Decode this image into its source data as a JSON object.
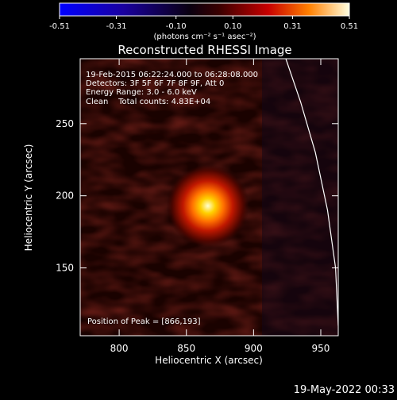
{
  "colorbar": {
    "tick_labels": [
      "-0.51",
      "-0.31",
      "-0.10",
      "0.10",
      "0.31",
      "0.51"
    ],
    "tick_values": [
      -0.51,
      -0.31,
      -0.1,
      0.1,
      0.31,
      0.51
    ],
    "range": [
      -0.51,
      0.51
    ],
    "units_label": "(photons cm⁻² s⁻¹ asec⁻²)",
    "colormap": "blue-black-red-yellow-white"
  },
  "title": "Reconstructed RHESSI Image",
  "info": {
    "time": "19-Feb-2015 06:22:24.000 to 06:28:08.000",
    "detectors": "Detectors: 3F 5F 6F 7F 8F 9F, Att 0",
    "energy": "Energy Range: 3.0 - 6.0 keV",
    "clean": "Clean    Total counts: 4.83E+04",
    "peak": "Position of Peak = [866,193]"
  },
  "timestamp": "19-May-2022 00:33",
  "chart_data": {
    "type": "heatmap",
    "title": "Reconstructed RHESSI Image",
    "xlabel": "Heliocentric X (arcsec)",
    "ylabel": "Heliocentric Y (arcsec)",
    "xlim": [
      771,
      963
    ],
    "ylim": [
      103,
      295
    ],
    "x_ticks": [
      800,
      850,
      900,
      950
    ],
    "y_ticks": [
      150,
      200,
      250
    ],
    "peak_position": [
      866,
      193
    ],
    "peak_value": 0.51,
    "source_fwhm_arcsec": 14,
    "limb_curve": {
      "x": [
        924,
        935,
        946,
        955,
        961,
        963
      ],
      "y": [
        295,
        265,
        230,
        190,
        150,
        110
      ]
    }
  }
}
